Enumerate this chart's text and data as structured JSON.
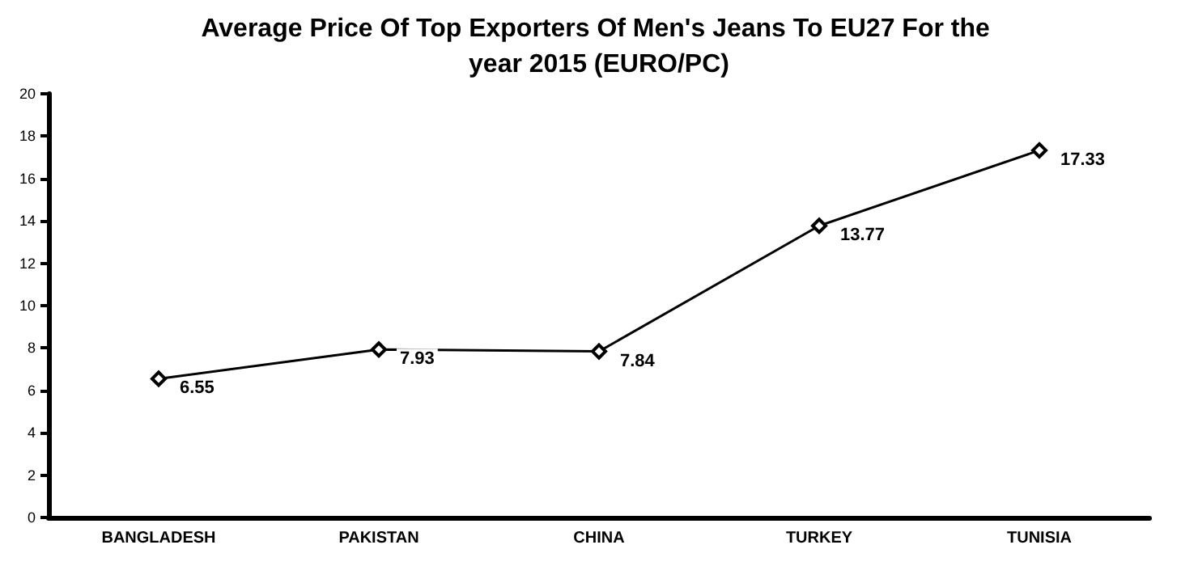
{
  "chart_data": {
    "type": "line",
    "title": "Average Price Of Top Exporters Of Men's Jeans To EU27 For the year 2015 (EURO/PC)",
    "categories": [
      "BANGLADESH",
      "PAKISTAN",
      "CHINA",
      "TURKEY",
      "TUNISIA"
    ],
    "series": [
      {
        "color": "#000000",
        "values": [
          6.55,
          7.93,
          7.84,
          13.77,
          17.33
        ]
      }
    ],
    "ylim": [
      0,
      20
    ],
    "yticks": [
      0,
      2,
      4,
      6,
      8,
      10,
      12,
      14,
      16,
      18,
      20
    ],
    "marker": "diamond",
    "line_style": "solid",
    "data_labels": true,
    "grid": false
  }
}
